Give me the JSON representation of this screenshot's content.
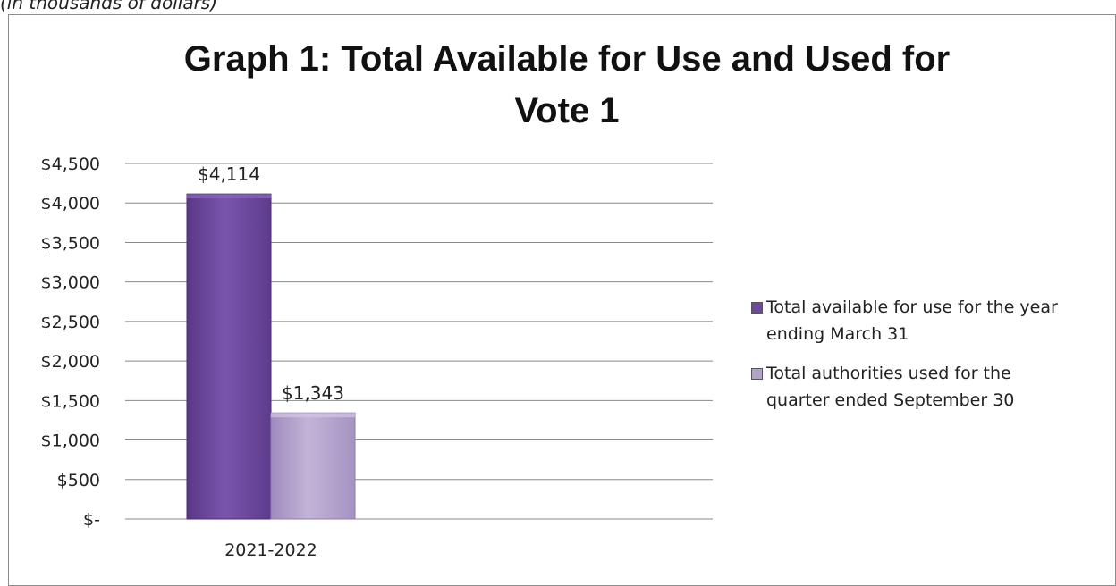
{
  "units_note": "(in thousands of dollars)",
  "chart_data": {
    "type": "bar",
    "title_lines": [
      "Graph 1: Total Available for Use and Used for",
      "Vote 1"
    ],
    "categories": [
      "2021-2022"
    ],
    "series": [
      {
        "name": "Total available for use for the year ending March 31",
        "values": [
          4114
        ],
        "data_labels": [
          "$4,114"
        ],
        "color": "#6e4a9e"
      },
      {
        "name": "Total authorities used for the quarter ended September 30",
        "values": [
          1343
        ],
        "data_labels": [
          "$1,343"
        ],
        "color": "#b3a2cc"
      }
    ],
    "legend_lines": [
      [
        "Total available for use for the year",
        "ending March 31"
      ],
      [
        "Total authorities used for the",
        "quarter ended September 30"
      ]
    ],
    "ylim": [
      0,
      4500
    ],
    "yticks": [
      0,
      500,
      1000,
      1500,
      2000,
      2500,
      3000,
      3500,
      4000,
      4500
    ],
    "ytick_labels": [
      "$-",
      "$500",
      "$1,000",
      "$1,500",
      "$2,000",
      "$2,500",
      "$3,000",
      "$3,500",
      "$4,000",
      "$4,500"
    ],
    "grid": true,
    "legend_position": "right",
    "xlabel": "",
    "ylabel": ""
  }
}
